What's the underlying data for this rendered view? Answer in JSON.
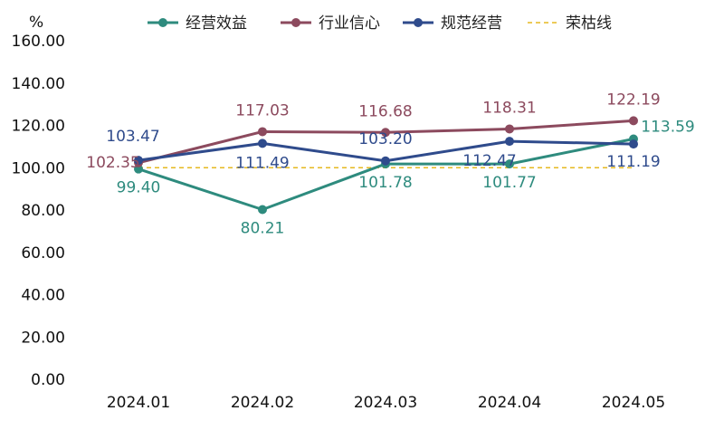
{
  "chart_data": {
    "type": "line",
    "unit_label": "%",
    "categories": [
      "2024.01",
      "2024.02",
      "2024.03",
      "2024.04",
      "2024.05"
    ],
    "ylim": [
      0,
      160
    ],
    "yticks": [
      "0.00",
      "20.00",
      "40.00",
      "60.00",
      "80.00",
      "100.00",
      "120.00",
      "140.00",
      "160.00"
    ],
    "grid": false,
    "legend_position": "top-right",
    "series": [
      {
        "name": "经营效益",
        "color": "#2e8b7e",
        "values": [
          99.4,
          80.21,
          101.78,
          101.77,
          113.59
        ],
        "labels": [
          "99.40",
          "80.21",
          "101.78",
          "101.77",
          "113.59"
        ]
      },
      {
        "name": "行业信心",
        "color": "#8c4a5e",
        "values": [
          102.35,
          117.03,
          116.68,
          118.31,
          122.19
        ],
        "labels": [
          "102.35",
          "117.03",
          "116.68",
          "118.31",
          "122.19"
        ]
      },
      {
        "name": "规范经营",
        "color": "#2f4b8c",
        "values": [
          103.47,
          111.49,
          103.2,
          112.47,
          111.19
        ],
        "labels": [
          "103.47",
          "111.49",
          "103.20",
          "112.47",
          "111.19"
        ]
      },
      {
        "name": "荣枯线",
        "color": "#e6b820",
        "dashed": true,
        "values": [
          100,
          100,
          100,
          100,
          100
        ]
      }
    ]
  }
}
